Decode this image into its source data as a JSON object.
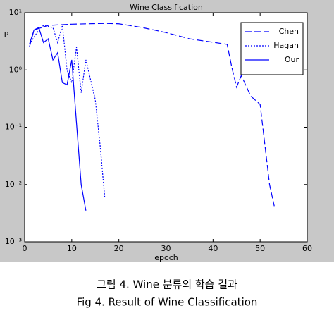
{
  "chart_data": {
    "type": "line",
    "title": "Wine Classification",
    "x_label": "epoch",
    "y_label": "P",
    "xlim": [
      0,
      60
    ],
    "xticks": [
      0,
      10,
      20,
      30,
      40,
      50,
      60
    ],
    "ylim": [
      0.001,
      10
    ],
    "log_y": true,
    "yticks": [
      {
        "value": 0.001,
        "label": "10⁻³"
      },
      {
        "value": 0.01,
        "label": "10⁻²"
      },
      {
        "value": 0.1,
        "label": "10⁻¹"
      },
      {
        "value": 1,
        "label": "10⁰"
      },
      {
        "value": 10,
        "label": "10¹"
      }
    ],
    "grid": false,
    "legend": "top-right",
    "series": [
      {
        "name": "Chen",
        "color": "#0000ff",
        "style": "dashed",
        "x": [
          1,
          2,
          5,
          10,
          17,
          20,
          25,
          30,
          35,
          43,
          44,
          45,
          46,
          48,
          50,
          52,
          53
        ],
        "values": [
          2.5,
          5,
          6,
          6.3,
          6.5,
          6.4,
          5.5,
          4.5,
          3.5,
          2.8,
          1.1,
          0.5,
          0.8,
          0.35,
          0.25,
          0.01,
          0.0042
        ]
      },
      {
        "name": "Hagan",
        "color": "#0000ff",
        "style": "dotted",
        "x": [
          1,
          3,
          4,
          6,
          7,
          8,
          9,
          10,
          11,
          12,
          13,
          15,
          16,
          17
        ],
        "values": [
          2.8,
          5,
          6,
          5.5,
          3,
          6,
          1.0,
          0.6,
          2.5,
          0.4,
          1.5,
          0.3,
          0.05,
          0.006
        ]
      },
      {
        "name": "Our",
        "color": "#0000ff",
        "style": "solid",
        "x": [
          1,
          2,
          3,
          4,
          5,
          6,
          7,
          8,
          9,
          10,
          11,
          12,
          13
        ],
        "values": [
          2.8,
          5,
          5.5,
          3,
          3.5,
          1.5,
          2,
          0.6,
          0.55,
          1.5,
          0.12,
          0.01,
          0.0035
        ]
      }
    ]
  },
  "caption": {
    "korean": "그림 4. Wine 분류의 학습 결과",
    "english": "Fig 4. Result of Wine Classification"
  }
}
